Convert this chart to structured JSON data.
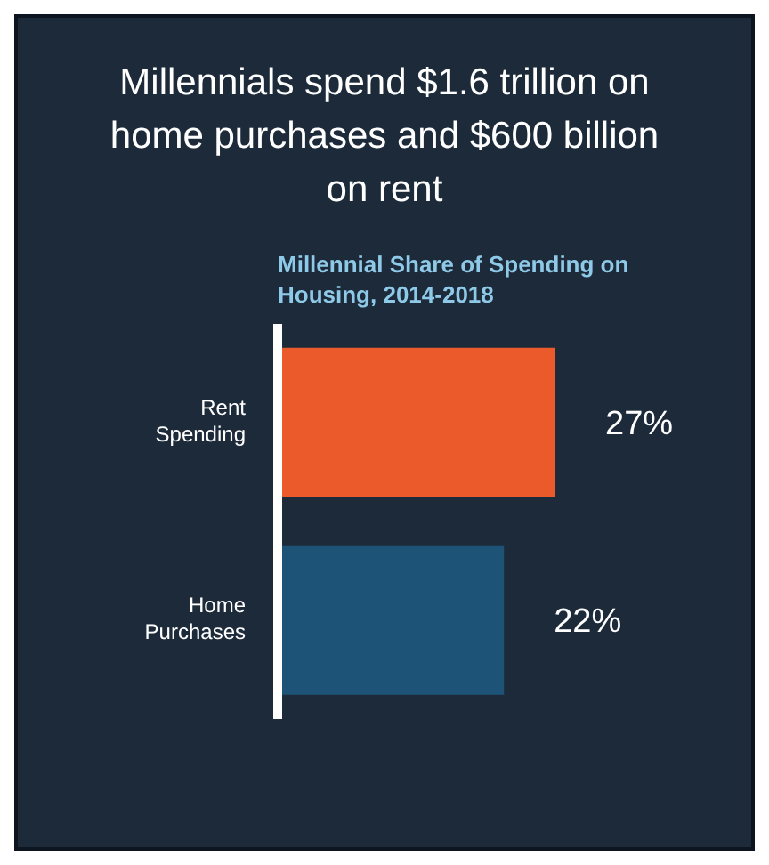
{
  "chart_data": {
    "type": "bar",
    "orientation": "horizontal",
    "title": "Millennials spend $1.6 trillion on home purchases and $600 billion on rent",
    "subtitle": "Millennial Share of Spending on Housing, 2014-2018",
    "categories": [
      "Rent Spending",
      "Home Purchases"
    ],
    "values": [
      27,
      22
    ],
    "colors": [
      "#ea5a2a",
      "#1e5378"
    ],
    "value_labels": [
      "27%",
      "22%"
    ],
    "grid": false,
    "legend": false
  }
}
